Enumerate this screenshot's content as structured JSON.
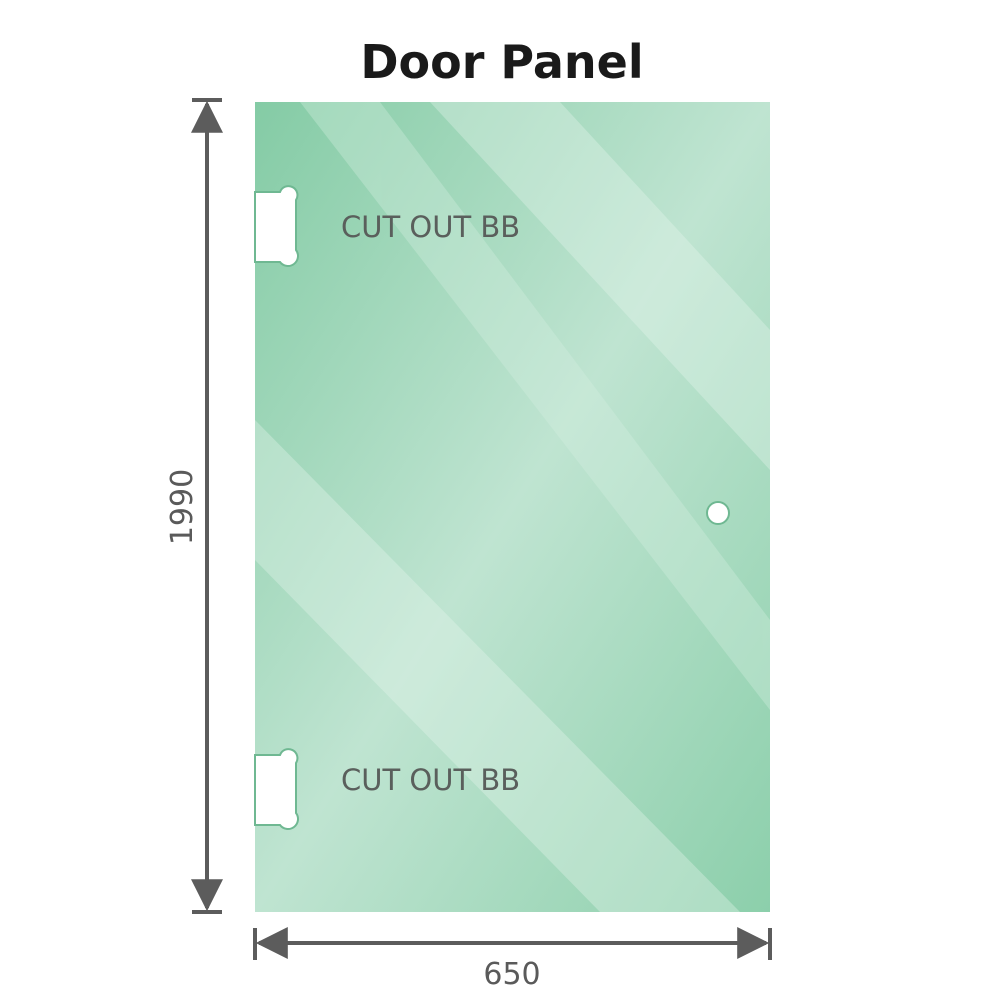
{
  "title": "Door Panel",
  "cutouts": [
    {
      "label": "CUT OUT BB"
    },
    {
      "label": "CUT OUT BB"
    }
  ],
  "dimensions": {
    "height": "1990",
    "width": "650"
  },
  "colors": {
    "glass": "#8fd0ae",
    "glass_light": "#bfe5d2",
    "dimension_line": "#5c5c5c"
  }
}
